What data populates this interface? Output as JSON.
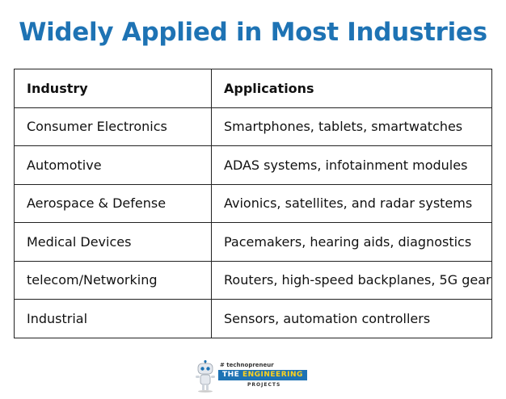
{
  "title": "Widely Applied in Most Industries",
  "table": {
    "headers": [
      "Industry",
      "Applications"
    ],
    "rows": [
      {
        "industry": "Consumer Electronics",
        "applications": "Smartphones, tablets, smartwatches"
      },
      {
        "industry": "Automotive",
        "applications": "ADAS systems, infotainment modules"
      },
      {
        "industry": "Aerospace & Defense",
        "applications": "Avionics, satellites, and radar systems"
      },
      {
        "industry": "Medical Devices",
        "applications": "Pacemakers, hearing aids, diagnostics"
      },
      {
        "industry": "telecom/Networking",
        "applications": "Routers, high-speed backplanes, 5G gear"
      },
      {
        "industry": "Industrial",
        "applications": "Sensors, automation controllers"
      }
    ]
  },
  "logo": {
    "tagline": "# technopreneur",
    "name_part1": "THE ",
    "name_part2": "ENGINEERING",
    "subtitle": "PROJECTS"
  },
  "colors": {
    "title": "#1e73b4",
    "border": "#222222",
    "logo_bar": "#1e73b4",
    "logo_accent": "#ffd21e"
  },
  "icons": [
    "robot-mascot-icon"
  ]
}
